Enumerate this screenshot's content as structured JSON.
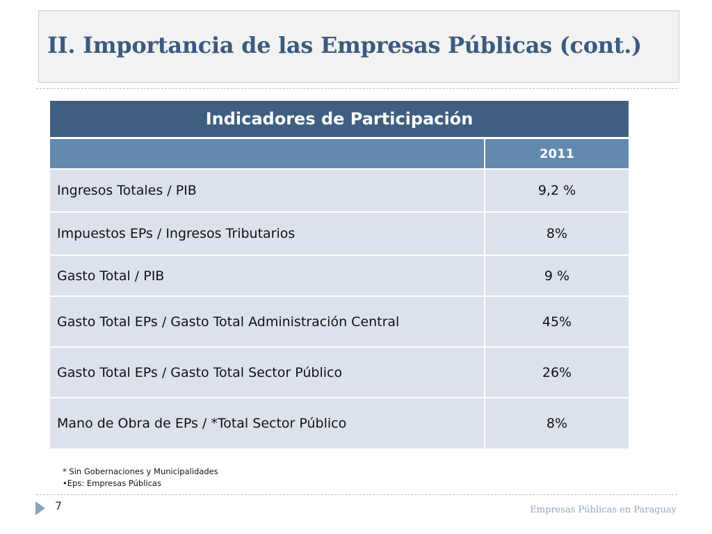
{
  "slide": {
    "title": "II. Importancia de las Empresas Públicas (cont.)"
  },
  "table": {
    "header": "Indicadores de Participación",
    "year": "2011",
    "rows": [
      {
        "label": "Ingresos Totales / PIB",
        "value": "9,2 %"
      },
      {
        "label": "Impuestos EPs / Ingresos Tributarios",
        "value": "8%"
      },
      {
        "label": "Gasto Total / PIB",
        "value": "9 %"
      },
      {
        "label": "Gasto Total EPs / Gasto Total Administración Central",
        "value": "45%"
      },
      {
        "label": "Gasto Total EPs / Gasto Total Sector Público",
        "value": "26%"
      },
      {
        "label": "Mano de Obra de EPs / *Total Sector Público",
        "value": "8%"
      }
    ]
  },
  "notes": [
    "* Sin Gobernaciones y Municipalidades",
    "•Eps: Empresas Públicas"
  ],
  "footer": {
    "page_number": "7",
    "text": "Empresas Públicas en Paraguay"
  },
  "colors": {
    "title": "#3b5a80",
    "header_dark": "#3e5f80",
    "header_light": "#6489ae",
    "row_bg": "#dce2ec"
  }
}
